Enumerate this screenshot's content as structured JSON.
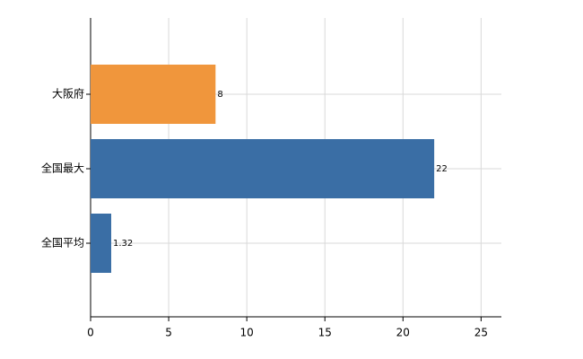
{
  "chart_data": {
    "type": "barh",
    "categories": [
      "大阪府",
      "全国最大",
      "全国平均"
    ],
    "values": [
      8,
      22,
      1.32
    ],
    "colors": [
      "#f0963c",
      "#3a6ea5",
      "#3a6ea5"
    ],
    "xlim": [
      0,
      26.3
    ],
    "xticks": [
      0,
      5,
      10,
      15,
      20,
      25
    ],
    "grid": true
  }
}
